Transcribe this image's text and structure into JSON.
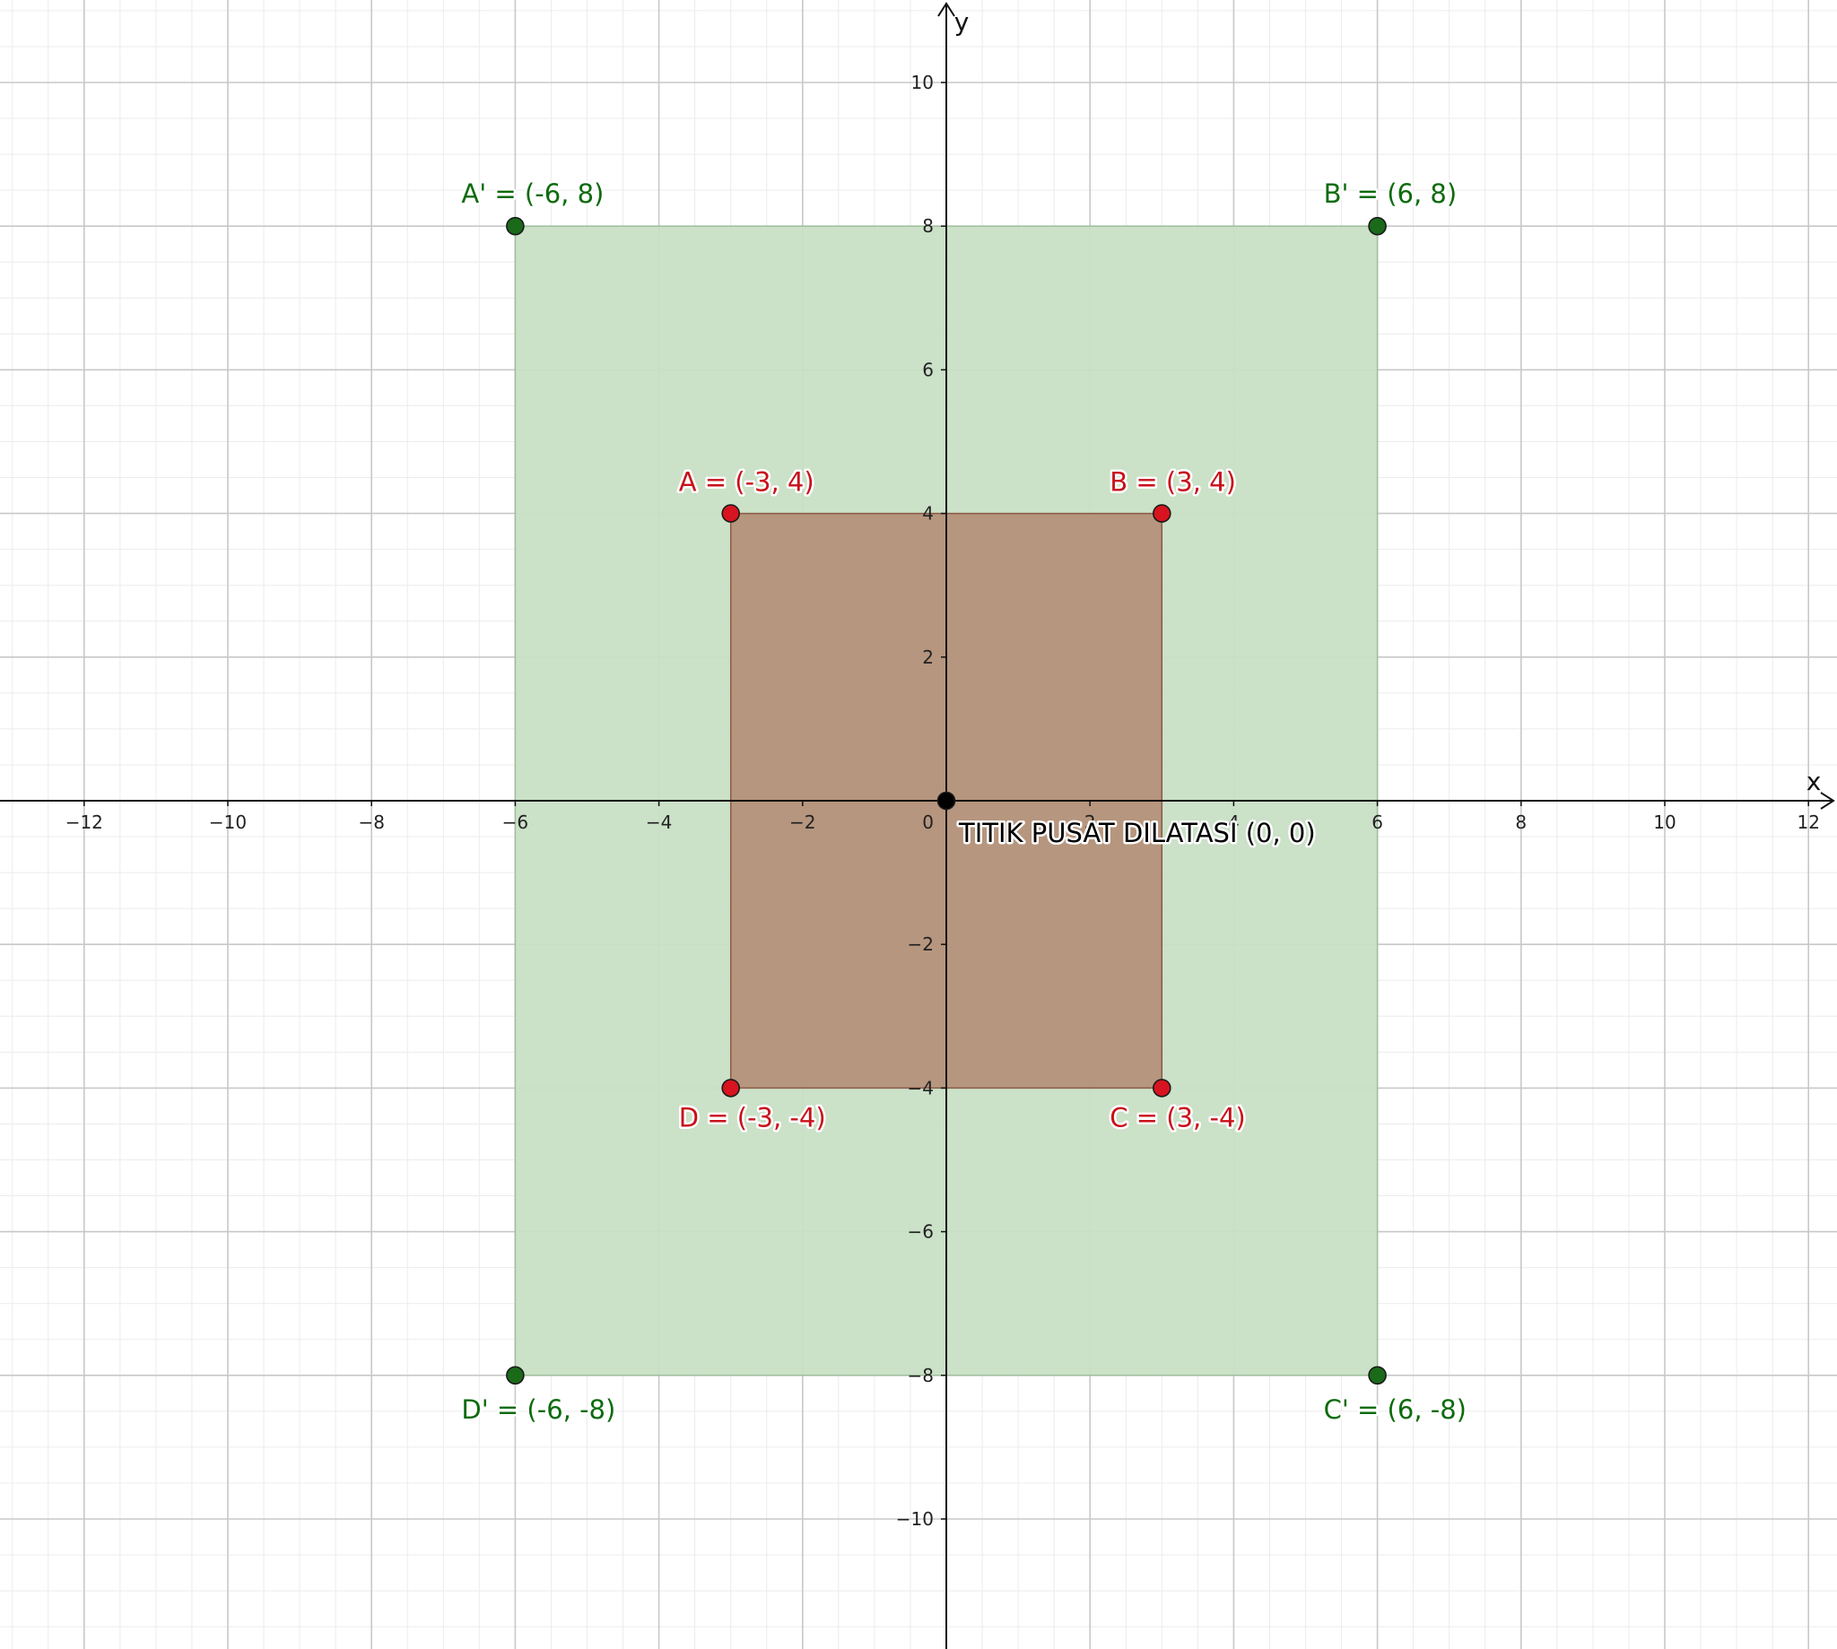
{
  "axes": {
    "x_label": "x",
    "y_label": "y",
    "x_range": [
      -13.2,
      12.4
    ],
    "y_range": [
      -11.8,
      11.1
    ],
    "x_ticks": [
      {
        "value": -12,
        "label": "−12"
      },
      {
        "value": -10,
        "label": "−10"
      },
      {
        "value": -8,
        "label": "−8"
      },
      {
        "value": -6,
        "label": "−6"
      },
      {
        "value": -4,
        "label": "−4"
      },
      {
        "value": -2,
        "label": "−2"
      },
      {
        "value": 2,
        "label": "2"
      },
      {
        "value": 4,
        "label": "4"
      },
      {
        "value": 6,
        "label": "6"
      },
      {
        "value": 8,
        "label": "8"
      },
      {
        "value": 10,
        "label": "10"
      },
      {
        "value": 12,
        "label": "12"
      }
    ],
    "y_ticks": [
      {
        "value": 10,
        "label": "10"
      },
      {
        "value": 8,
        "label": "8"
      },
      {
        "value": 6,
        "label": "6"
      },
      {
        "value": 4,
        "label": "4"
      },
      {
        "value": 2,
        "label": "2"
      },
      {
        "value": -2,
        "label": "−2"
      },
      {
        "value": -4,
        "label": "−4"
      },
      {
        "value": -6,
        "label": "−6"
      },
      {
        "value": -8,
        "label": "−8"
      },
      {
        "value": -10,
        "label": "−10"
      }
    ],
    "origin_label": "0",
    "grid": true
  },
  "colors": {
    "original_fill": "#b08069",
    "original_point": "#d7141f",
    "original_label": "#c8101a",
    "image_fill": "#c8dfc5",
    "image_point": "#1a6a1a",
    "image_label": "#0d6b0d",
    "center_point": "#000000"
  },
  "original_rectangle": {
    "points": [
      {
        "name": "A",
        "label": "A = (-3, 4)",
        "x": -3,
        "y": 4
      },
      {
        "name": "B",
        "label": "B = (3, 4)",
        "x": 3,
        "y": 4
      },
      {
        "name": "C",
        "label": "C = (3, -4)",
        "x": 3,
        "y": -4
      },
      {
        "name": "D",
        "label": "D = (-3, -4)",
        "x": -3,
        "y": -4
      }
    ]
  },
  "image_rectangle": {
    "points": [
      {
        "name": "A'",
        "label": "A' = (-6, 8)",
        "x": -6,
        "y": 8
      },
      {
        "name": "B'",
        "label": "B' = (6, 8)",
        "x": 6,
        "y": 8
      },
      {
        "name": "C'",
        "label": "C' = (6, -8)",
        "x": 6,
        "y": -8
      },
      {
        "name": "D'",
        "label": "D' = (-6, -8)",
        "x": -6,
        "y": -8
      }
    ]
  },
  "center": {
    "label": "TITIK PUSAT DILATASI (0, 0)",
    "x": 0,
    "y": 0
  }
}
